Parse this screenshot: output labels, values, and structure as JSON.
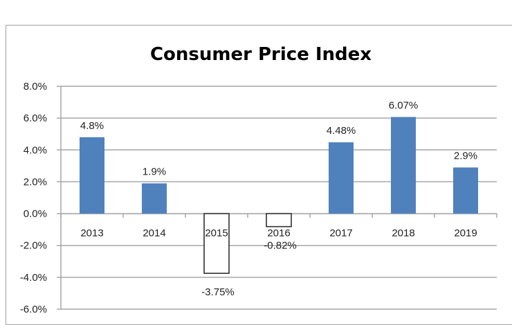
{
  "chart_data": {
    "type": "bar",
    "title": "Consumer Price Index",
    "xlabel": "",
    "ylabel": "",
    "categories": [
      "2013",
      "2014",
      "2015",
      "2016",
      "2017",
      "2018",
      "2019"
    ],
    "values": [
      4.8,
      1.9,
      -3.75,
      -0.82,
      4.48,
      6.07,
      2.9
    ],
    "data_labels": [
      "4.8%",
      "1.9%",
      "-3.75%",
      "-0.82%",
      "4.48%",
      "6.07%",
      "2.9%"
    ],
    "ylim": [
      -6,
      8
    ],
    "yticks": [
      8,
      6,
      4,
      2,
      0,
      -2,
      -4,
      -6
    ],
    "ytick_labels": [
      "8.0%",
      "6.0%",
      "4.0%",
      "2.0%",
      "0.0%",
      "-2.0%",
      "-4.0%",
      "-6.0%"
    ],
    "grid": true,
    "legend": "none",
    "colors": {
      "positive": "#4f81bd",
      "negative_fill": "#ffffff",
      "negative_border": "#222222",
      "grid": "#a6a6a6"
    }
  }
}
